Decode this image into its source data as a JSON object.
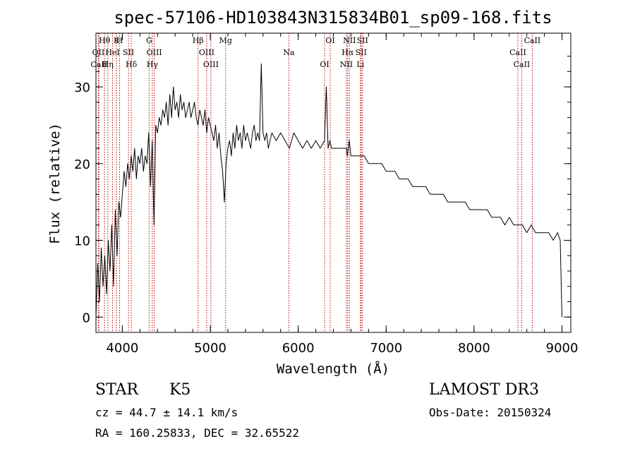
{
  "chart_data": {
    "type": "line",
    "title": "spec-57106-HD103843N315834B01_sp09-168.fits",
    "xlabel": "Wavelength (Å)",
    "ylabel": "Flux (relative)",
    "xlim": [
      3700,
      9100
    ],
    "ylim": [
      -2,
      37
    ],
    "xticks": [
      4000,
      5000,
      6000,
      7000,
      8000,
      9000
    ],
    "yticks": [
      0,
      10,
      20,
      30
    ],
    "grid": false,
    "series": [
      {
        "name": "flux",
        "x": [
          3700,
          3720,
          3740,
          3760,
          3780,
          3800,
          3820,
          3840,
          3860,
          3880,
          3900,
          3920,
          3940,
          3960,
          3980,
          4000,
          4020,
          4040,
          4060,
          4080,
          4100,
          4120,
          4140,
          4160,
          4180,
          4200,
          4220,
          4240,
          4260,
          4280,
          4300,
          4320,
          4340,
          4360,
          4380,
          4400,
          4420,
          4440,
          4460,
          4480,
          4500,
          4520,
          4540,
          4560,
          4580,
          4600,
          4620,
          4640,
          4660,
          4680,
          4700,
          4720,
          4740,
          4760,
          4780,
          4800,
          4820,
          4840,
          4860,
          4880,
          4900,
          4920,
          4940,
          4960,
          4980,
          5000,
          5020,
          5040,
          5060,
          5080,
          5100,
          5120,
          5140,
          5160,
          5180,
          5200,
          5220,
          5240,
          5260,
          5280,
          5300,
          5320,
          5340,
          5360,
          5380,
          5400,
          5420,
          5440,
          5460,
          5480,
          5500,
          5520,
          5540,
          5560,
          5580,
          5600,
          5620,
          5640,
          5660,
          5680,
          5700,
          5750,
          5800,
          5850,
          5900,
          5950,
          6000,
          6050,
          6100,
          6150,
          6200,
          6250,
          6300,
          6320,
          6340,
          6360,
          6380,
          6400,
          6450,
          6500,
          6550,
          6560,
          6580,
          6600,
          6650,
          6700,
          6750,
          6800,
          6850,
          6900,
          6950,
          7000,
          7050,
          7100,
          7150,
          7200,
          7250,
          7300,
          7350,
          7400,
          7450,
          7500,
          7550,
          7600,
          7650,
          7700,
          7750,
          7800,
          7850,
          7900,
          7950,
          8000,
          8050,
          8100,
          8150,
          8200,
          8250,
          8300,
          8350,
          8400,
          8450,
          8500,
          8550,
          8600,
          8650,
          8700,
          8750,
          8800,
          8850,
          8900,
          8950,
          8980,
          9000
        ],
        "values": [
          0,
          7,
          2,
          9,
          4,
          8,
          3,
          10,
          6,
          12,
          4,
          14,
          8,
          15,
          13,
          16,
          19,
          17,
          20,
          18,
          21,
          19,
          22,
          18,
          21,
          20,
          22,
          19,
          21,
          20,
          24,
          17,
          23,
          12,
          25,
          24,
          26,
          25,
          27,
          26,
          28,
          25,
          29,
          26,
          30,
          27,
          28,
          26,
          29,
          27,
          28,
          26,
          27,
          28,
          26,
          27,
          28,
          26,
          25,
          27,
          26,
          25,
          27,
          24,
          26,
          25,
          24,
          23,
          25,
          22,
          24,
          21,
          19,
          15,
          20,
          22,
          23,
          21,
          24,
          22,
          25,
          23,
          24,
          22,
          25,
          23,
          24,
          23,
          22,
          24,
          25,
          23,
          24,
          23,
          33,
          24,
          23,
          24,
          22,
          23,
          24,
          23,
          24,
          23,
          22,
          24,
          23,
          22,
          23,
          22,
          23,
          22,
          23,
          30,
          22,
          23,
          22,
          22,
          22,
          22,
          22,
          21,
          23,
          21,
          21,
          21,
          21,
          20,
          20,
          20,
          20,
          19,
          19,
          19,
          18,
          18,
          18,
          17,
          17,
          17,
          17,
          16,
          16,
          16,
          16,
          15,
          15,
          15,
          15,
          15,
          14,
          14,
          14,
          14,
          14,
          13,
          13,
          13,
          12,
          13,
          12,
          12,
          12,
          11,
          12,
          11,
          11,
          11,
          11,
          10,
          11,
          10,
          0
        ]
      }
    ],
    "lines": [
      {
        "label": "Hθ",
        "x": 3798
      },
      {
        "label": "OII",
        "x": 3727
      },
      {
        "label": "CaII",
        "x": 3734
      },
      {
        "label": "K",
        "x": 3934
      },
      {
        "label": "HeI",
        "x": 3889
      },
      {
        "label": "Hη",
        "x": 3835
      },
      {
        "label": "H",
        "x": 3969
      },
      {
        "label": "SII",
        "x": 4070
      },
      {
        "label": "Hδ",
        "x": 4102
      },
      {
        "label": "G",
        "x": 4305
      },
      {
        "label": "OIII",
        "x": 4363
      },
      {
        "label": "Hγ",
        "x": 4341
      },
      {
        "label": "Hβ",
        "x": 4861
      },
      {
        "label": "OIII",
        "x": 4959
      },
      {
        "label": "OIII",
        "x": 5007
      },
      {
        "label": "Mg",
        "x": 5175
      },
      {
        "label": "Na",
        "x": 5894
      },
      {
        "label": "OI",
        "x": 6300
      },
      {
        "label": "OI",
        "x": 6364
      },
      {
        "label": "Hα",
        "x": 6563
      },
      {
        "label": "NII",
        "x": 6548
      },
      {
        "label": "NII",
        "x": 6583
      },
      {
        "label": "SII",
        "x": 6716
      },
      {
        "label": "Li",
        "x": 6708
      },
      {
        "label": "SII",
        "x": 6731
      },
      {
        "label": "CaII",
        "x": 8498
      },
      {
        "label": "CaII",
        "x": 8542
      },
      {
        "label": "CaII",
        "x": 8662
      }
    ]
  },
  "info": {
    "class_label": "STAR",
    "subclass": "K5",
    "survey": "LAMOST DR3",
    "redshift": "cz = 44.7 ± 14.1 km/s",
    "obs_date": "Obs-Date: 20150324",
    "coords": "RA = 160.25833, DEC =  32.65522"
  }
}
